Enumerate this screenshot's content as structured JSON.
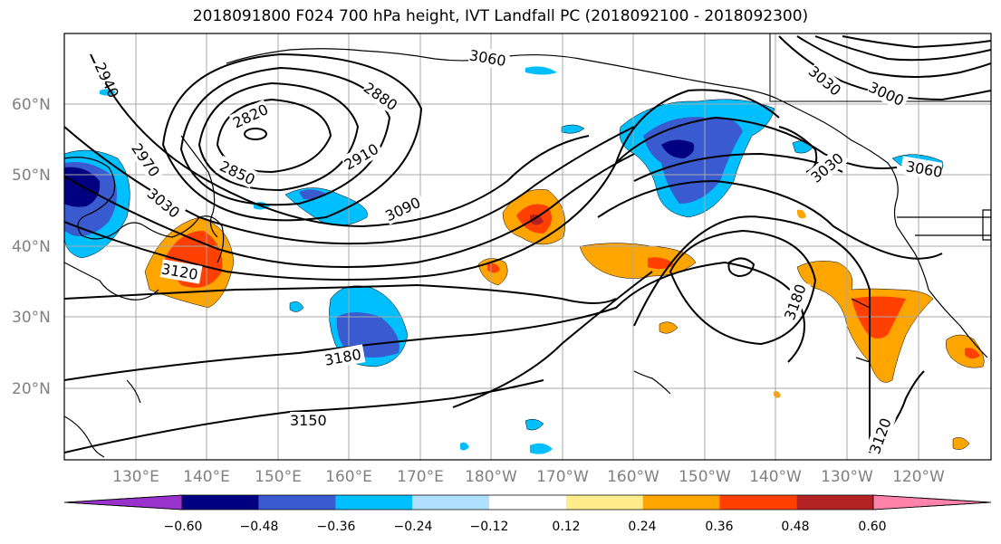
{
  "title": "2018091800 F024 700 hPa height, IVT Landfall PC (2018092100 - 2018092300)",
  "map": {
    "lat_labels": [
      "60°N",
      "50°N",
      "40°N",
      "30°N",
      "20°N"
    ],
    "lon_labels": [
      "130°E",
      "140°E",
      "150°E",
      "160°E",
      "170°E",
      "180°W",
      "170°W",
      "160°W",
      "150°W",
      "140°W",
      "130°W",
      "120°W"
    ],
    "contour_labels": [
      "2940",
      "2820",
      "2880",
      "2850",
      "2910",
      "2970",
      "3030",
      "3060",
      "3090",
      "3120",
      "3180",
      "3150",
      "3000",
      "3030",
      "3060",
      "3180",
      "3120",
      "3030"
    ],
    "colors": {
      "dark_purple": "#9a32cd",
      "navy": "#000080",
      "blue": "#3a5bd0",
      "cyan": "#00bfff",
      "light_cyan": "#b0e0ff",
      "white": "#ffffff",
      "light_yellow": "#ffec8b",
      "orange": "#ffa500",
      "red_orange": "#ff4000",
      "dark_red": "#b22222",
      "pink": "#ff82ab"
    }
  },
  "colorbar": {
    "ticks": [
      "−0.60",
      "−0.48",
      "−0.36",
      "−0.24",
      "−0.12",
      "0.12",
      "0.24",
      "0.36",
      "0.48",
      "0.60"
    ],
    "segments": [
      "#9a32cd",
      "#000080",
      "#3a5bd0",
      "#00bfff",
      "#b0e0ff",
      "#ffffff",
      "#ffec8b",
      "#ffa500",
      "#ff4000",
      "#b22222",
      "#ff82ab"
    ]
  }
}
